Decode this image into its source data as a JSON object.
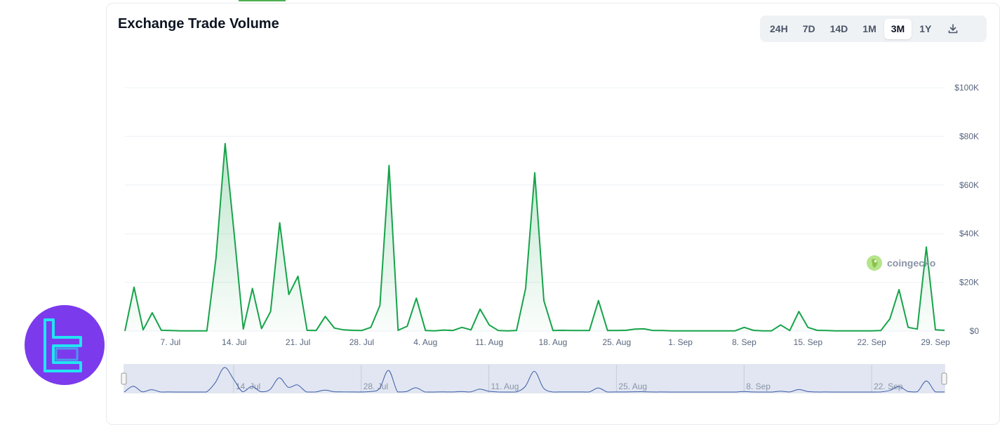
{
  "header": {
    "title": "Exchange Trade Volume"
  },
  "range_buttons": [
    "24H",
    "7D",
    "14D",
    "1M",
    "3M",
    "1Y"
  ],
  "active_range": "3M",
  "watermark": "coingecko",
  "colors": {
    "line": "#16a34a",
    "fill": "#16a34a",
    "logo_bg": "#7c3aed",
    "logo_stroke": "#22e4f2",
    "navigator_bg": "#dde3f0"
  },
  "chart_data": {
    "type": "area",
    "title": "Exchange Trade Volume",
    "xlabel": "",
    "ylabel": "",
    "y_tick_labels": [
      "$0",
      "$20K",
      "$40K",
      "$60K",
      "$80K",
      "$100K"
    ],
    "y_ticks": [
      0,
      20000,
      40000,
      60000,
      80000,
      100000
    ],
    "ylim": [
      0,
      100000
    ],
    "x_tick_labels": [
      "7. Jul",
      "14. Jul",
      "21. Jul",
      "28. Jul",
      "4. Aug",
      "11. Aug",
      "18. Aug",
      "25. Aug",
      "1. Sep",
      "8. Sep",
      "15. Sep",
      "22. Sep",
      "29. Sep"
    ],
    "x_ticks": [
      "2024-07-07",
      "2024-07-14",
      "2024-07-21",
      "2024-07-28",
      "2024-08-04",
      "2024-08-11",
      "2024-08-18",
      "2024-08-25",
      "2024-09-01",
      "2024-09-08",
      "2024-09-15",
      "2024-09-22",
      "2024-09-29"
    ],
    "navigator_labels": [
      "14. Jul",
      "28. Jul",
      "11. Aug",
      "25. Aug",
      "8. Sep",
      "22. Sep"
    ],
    "navigator_ticks": [
      "2024-07-14",
      "2024-07-28",
      "2024-08-11",
      "2024-08-25",
      "2024-09-08",
      "2024-09-22"
    ],
    "grid": true,
    "legend": "none",
    "series": [
      {
        "dates": [
          "2024-07-02",
          "2024-07-03",
          "2024-07-04",
          "2024-07-05",
          "2024-07-06",
          "2024-07-07",
          "2024-07-08",
          "2024-07-09",
          "2024-07-10",
          "2024-07-11",
          "2024-07-12",
          "2024-07-13",
          "2024-07-14",
          "2024-07-15",
          "2024-07-16",
          "2024-07-17",
          "2024-07-18",
          "2024-07-19",
          "2024-07-20",
          "2024-07-21",
          "2024-07-22",
          "2024-07-23",
          "2024-07-24",
          "2024-07-25",
          "2024-07-26",
          "2024-07-27",
          "2024-07-28",
          "2024-07-29",
          "2024-07-30",
          "2024-07-31",
          "2024-08-01",
          "2024-08-02",
          "2024-08-03",
          "2024-08-04",
          "2024-08-05",
          "2024-08-06",
          "2024-08-07",
          "2024-08-08",
          "2024-08-09",
          "2024-08-10",
          "2024-08-11",
          "2024-08-12",
          "2024-08-13",
          "2024-08-14",
          "2024-08-15",
          "2024-08-16",
          "2024-08-17",
          "2024-08-18",
          "2024-08-19",
          "2024-08-20",
          "2024-08-21",
          "2024-08-22",
          "2024-08-23",
          "2024-08-24",
          "2024-08-25",
          "2024-08-26",
          "2024-08-27",
          "2024-08-28",
          "2024-08-29",
          "2024-08-30",
          "2024-08-31",
          "2024-09-01",
          "2024-09-02",
          "2024-09-03",
          "2024-09-04",
          "2024-09-05",
          "2024-09-06",
          "2024-09-07",
          "2024-09-08",
          "2024-09-09",
          "2024-09-10",
          "2024-09-11",
          "2024-09-12",
          "2024-09-13",
          "2024-09-14",
          "2024-09-15",
          "2024-09-16",
          "2024-09-17",
          "2024-09-18",
          "2024-09-19",
          "2024-09-20",
          "2024-09-21",
          "2024-09-22",
          "2024-09-23",
          "2024-09-24",
          "2024-09-25",
          "2024-09-26",
          "2024-09-27",
          "2024-09-28",
          "2024-09-29",
          "2024-09-30"
        ],
        "values": [
          0,
          18000,
          500,
          7500,
          300,
          200,
          100,
          100,
          100,
          100,
          30000,
          77000,
          40000,
          800,
          17500,
          1000,
          8000,
          44500,
          15000,
          22500,
          300,
          200,
          6000,
          1200,
          500,
          300,
          200,
          1500,
          10500,
          68000,
          300,
          2000,
          13500,
          200,
          100,
          400,
          200,
          1500,
          500,
          9000,
          2500,
          200,
          100,
          200,
          17500,
          65000,
          12500,
          200,
          300,
          200,
          200,
          200,
          12500,
          200,
          200,
          300,
          800,
          900,
          200,
          200,
          100,
          100,
          100,
          100,
          100,
          100,
          100,
          100,
          1500,
          300,
          100,
          100,
          2500,
          200,
          8000,
          1500,
          300,
          200,
          100,
          100,
          100,
          100,
          100,
          200,
          5000,
          17000,
          1500,
          800,
          34500,
          500,
          300
        ]
      }
    ]
  }
}
